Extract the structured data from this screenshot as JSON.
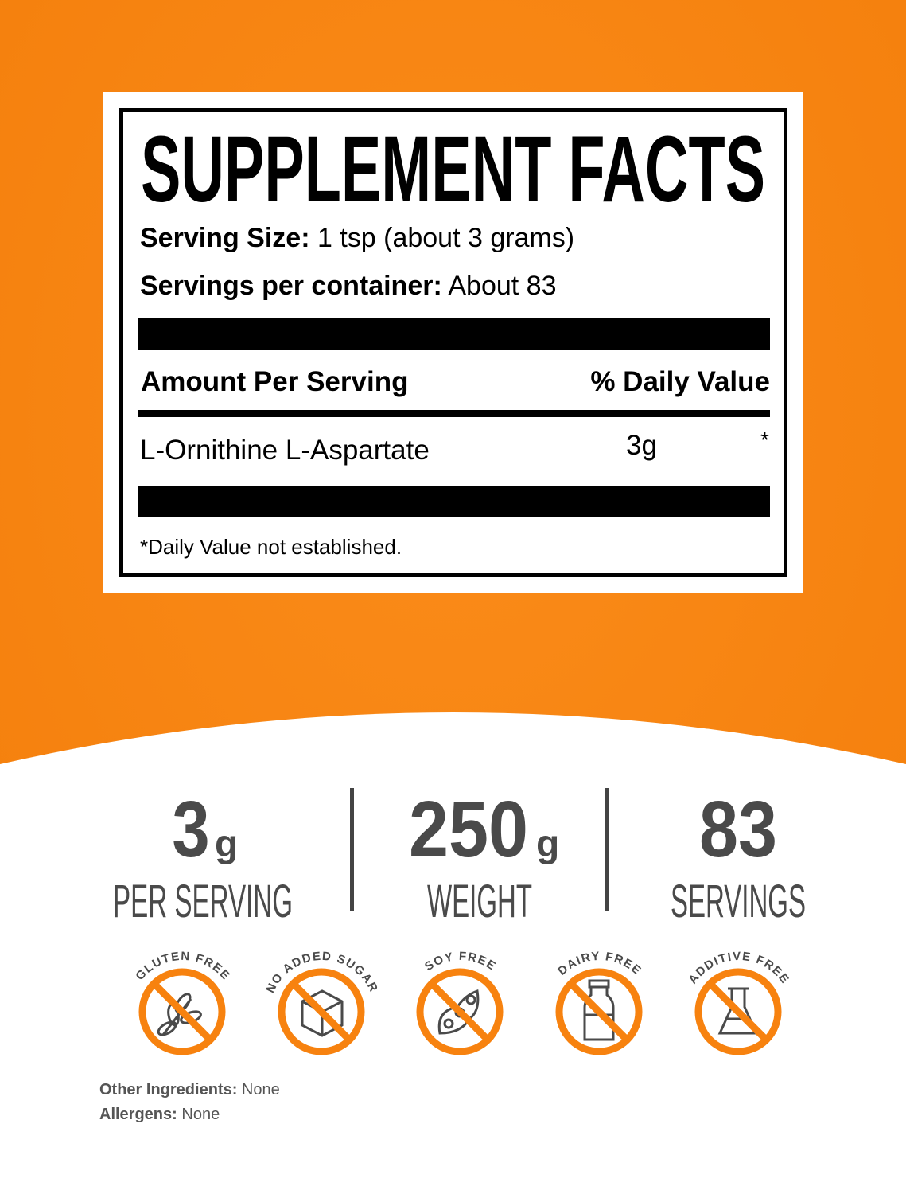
{
  "colors": {
    "accent": "#f7820f",
    "dark": "#4a4a4a"
  },
  "facts": {
    "title": "SUPPLEMENT FACTS",
    "serving_size_label": "Serving Size:",
    "serving_size_value": "1 tsp (about 3 grams)",
    "servings_label": "Servings per container:",
    "servings_value": "About 83",
    "amount_header": "Amount Per Serving",
    "dv_header": "% Daily Value",
    "ingredients": [
      {
        "name": "L-Ornithine L-Aspartate",
        "amount": "3g",
        "dv": "*"
      }
    ],
    "footnote": "*Daily Value not established."
  },
  "stats": [
    {
      "value": "3",
      "unit": "g",
      "label": "PER SERVING"
    },
    {
      "value": "250",
      "unit": "g",
      "label": "WEIGHT"
    },
    {
      "value": "83",
      "unit": "",
      "label": "SERVINGS"
    }
  ],
  "badges": [
    {
      "label": "GLUTEN FREE",
      "icon": "wheat-icon"
    },
    {
      "label": "NO ADDED SUGAR",
      "icon": "sugar-cube-icon"
    },
    {
      "label": "SOY FREE",
      "icon": "soybean-icon"
    },
    {
      "label": "DAIRY FREE",
      "icon": "milk-bottle-icon"
    },
    {
      "label": "ADDITIVE FREE",
      "icon": "flask-icon"
    }
  ],
  "other": {
    "ingredients_label": "Other Ingredients:",
    "ingredients_value": "None",
    "allergens_label": "Allergens:",
    "allergens_value": "None"
  }
}
